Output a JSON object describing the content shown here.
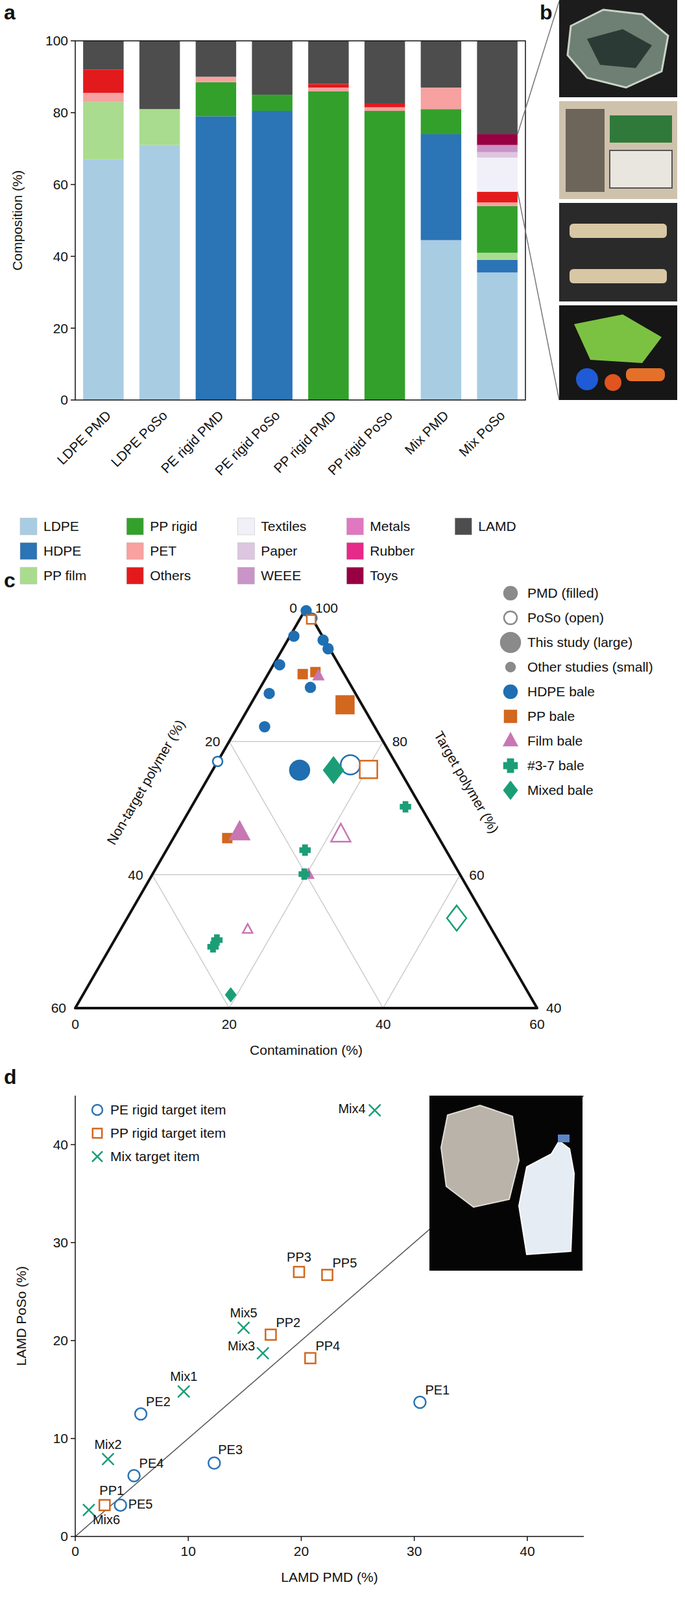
{
  "chart_data": [
    {
      "panel": "a",
      "type": "bar",
      "stacked": true,
      "ylabel": "Composition (%)",
      "categories": [
        "LDPE PMD",
        "LDPE PoSo",
        "PE rigid PMD",
        "PE rigid PoSo",
        "PP rigid PMD",
        "PP rigid PoSo",
        "Mix PMD",
        "Mix PoSo"
      ],
      "ylim": [
        0,
        100
      ],
      "yticks": [
        0,
        20,
        40,
        60,
        80,
        100
      ],
      "legend": "bottom",
      "series": [
        {
          "name": "LDPE",
          "color": "#a8cde3",
          "values": [
            67,
            71,
            0,
            0,
            0,
            0,
            44.5,
            35.5
          ]
        },
        {
          "name": "HDPE",
          "color": "#2b74b5",
          "values": [
            0,
            0,
            79,
            80.5,
            0,
            0,
            29.5,
            3.5
          ]
        },
        {
          "name": "PP film",
          "color": "#a9dc8e",
          "values": [
            16,
            10,
            0,
            0,
            0,
            0,
            0,
            2
          ]
        },
        {
          "name": "PP rigid",
          "color": "#33a02c",
          "values": [
            0,
            0,
            9.5,
            4.5,
            86,
            80.5,
            7,
            13
          ]
        },
        {
          "name": "PET",
          "color": "#f7a1a1",
          "values": [
            2.5,
            0,
            1.5,
            0,
            1,
            1,
            6,
            1
          ]
        },
        {
          "name": "Others",
          "color": "#e31a1c",
          "values": [
            6.5,
            0,
            0,
            0,
            1,
            1,
            0,
            3
          ]
        },
        {
          "name": "Textiles",
          "color": "#f1eff7",
          "values": [
            0,
            0,
            0,
            0,
            0,
            0,
            0,
            9.5
          ]
        },
        {
          "name": "Paper",
          "color": "#dcc6e0",
          "values": [
            0,
            0,
            0,
            0,
            0,
            0,
            0,
            1.5
          ]
        },
        {
          "name": "WEEE",
          "color": "#c994c7",
          "values": [
            0,
            0,
            0,
            0,
            0,
            0,
            0,
            2
          ]
        },
        {
          "name": "Metals",
          "color": "#e077c0",
          "values": [
            0,
            0,
            0,
            0,
            0,
            0,
            0,
            0
          ]
        },
        {
          "name": "Rubber",
          "color": "#e7298a",
          "values": [
            0,
            0,
            0,
            0,
            0,
            0,
            0,
            0
          ]
        },
        {
          "name": "Toys",
          "color": "#980043",
          "values": [
            0,
            0,
            0,
            0,
            0,
            0,
            0,
            3
          ]
        },
        {
          "name": "LAMD",
          "color": "#4d4d4d",
          "values": [
            8,
            19,
            10,
            15,
            12,
            17.5,
            13,
            26
          ]
        }
      ]
    },
    {
      "panel": "b",
      "type": "image"
    },
    {
      "panel": "c",
      "type": "ternary",
      "grid": true,
      "legend": "top-right",
      "xlabel": "Contamination (%)",
      "xlim": [
        0,
        60
      ],
      "xticks": [
        0,
        20,
        40,
        60
      ],
      "ylabel": "Non-target polymer (%)",
      "ylim": [
        0,
        60
      ],
      "yticks": [
        0,
        20,
        40,
        60
      ],
      "zlabel": "Target polymer (%)",
      "zlim": [
        40,
        100
      ],
      "zticks": [
        40,
        60,
        80,
        100
      ],
      "style_legend": [
        "PMD (filled)",
        "PoSo (open)",
        "This study (large)",
        "Other studies (small)"
      ],
      "series": [
        {
          "name": "HDPE bale",
          "color": "#1f6fb2",
          "marker": "circle",
          "x": [
            0.2,
            0.5,
            4.6,
            5.9,
            0.8,
            1.6,
            3.5,
            6.5,
            1.5,
            0,
            11.3,
            17.5
          ],
          "values": [
            0.2,
            3.7,
            0.2,
            0.2,
            7.7,
            11.2,
            14.3,
            5.4,
            0,
            23,
            13,
            6
          ],
          "filled": [
            true,
            true,
            true,
            true,
            true,
            true,
            true,
            true,
            false,
            false,
            true,
            false
          ],
          "large": [
            false,
            false,
            false,
            false,
            false,
            false,
            false,
            false,
            false,
            false,
            true,
            true
          ]
        },
        {
          "name": "PP bale",
          "color": "#d2671f",
          "marker": "square",
          "x": [
            1.5,
            4.5,
            6,
            7,
            12.3,
            20.2
          ],
          "values": [
            0.2,
            5.4,
            3.6,
            27.5,
            2.2,
            4
          ],
          "filled": [
            false,
            true,
            true,
            true,
            true,
            false
          ],
          "large": [
            false,
            false,
            false,
            false,
            true,
            true
          ]
        },
        {
          "name": "Film bale",
          "color": "#c777b3",
          "marker": "triangle",
          "x": [
            6.7,
            20.3,
            16.5,
            8.2,
            21.5
          ],
          "values": [
            3.5,
            19.7,
            31.7,
            25.5,
            12.5
          ],
          "filled": [
            true,
            true,
            false,
            true,
            false
          ],
          "large": [
            false,
            false,
            false,
            true,
            true
          ]
        },
        {
          "name": "#3-7 bale",
          "color": "#1b9e77",
          "marker": "plus",
          "x": [
            27.8,
            18,
            19.7,
            13.3,
            13.3
          ],
          "values": [
            2,
            18.3,
            20.2,
            36.5,
            37.5
          ],
          "filled": [
            true,
            true,
            true,
            true,
            true
          ],
          "large": [
            false,
            false,
            false,
            false,
            false
          ]
        },
        {
          "name": "Mixed bale",
          "color": "#1b9e77",
          "marker": "diamond",
          "x": [
            15.7,
            42.8,
            19.2
          ],
          "values": [
            8.6,
            3.7,
            38.8
          ],
          "filled": [
            true,
            false,
            true
          ],
          "large": [
            true,
            true,
            false
          ]
        }
      ]
    },
    {
      "panel": "d",
      "type": "scatter",
      "legend": "top-left",
      "xlabel": "LAMD PMD (%)",
      "ylabel": "LAMD PoSo (%)",
      "xlim": [
        0,
        45
      ],
      "ylim": [
        0,
        45
      ],
      "xticks": [
        0,
        10,
        20,
        30,
        40
      ],
      "yticks": [
        0,
        10,
        20,
        30,
        40
      ],
      "series": [
        {
          "name": "PE rigid target item",
          "color": "#2b74b5",
          "marker": "circle",
          "x": [
            30.5,
            5.8,
            12.3,
            5.2,
            4.0
          ],
          "values": [
            13.7,
            12.5,
            7.5,
            6.2,
            3.2
          ],
          "labels": [
            "PE1",
            "PE2",
            "PE3",
            "PE4",
            "PE5"
          ]
        },
        {
          "name": "PP rigid target item",
          "color": "#d2671f",
          "marker": "square",
          "x": [
            2.6,
            17.3,
            19.8,
            20.8,
            22.3
          ],
          "values": [
            3.2,
            20.6,
            27.0,
            18.2,
            26.7
          ],
          "labels": [
            "PP1",
            "PP2",
            "PP3",
            "PP4",
            "PP5"
          ]
        },
        {
          "name": "Mix target item",
          "color": "#1b9e77",
          "marker": "x",
          "x": [
            9.6,
            2.9,
            16.6,
            26.5,
            14.9,
            1.2
          ],
          "values": [
            14.8,
            7.9,
            18.7,
            43.5,
            21.3,
            2.7
          ],
          "labels": [
            "Mix1",
            "Mix2",
            "Mix3",
            "Mix4",
            "Mix5",
            "Mix6"
          ]
        }
      ]
    }
  ]
}
